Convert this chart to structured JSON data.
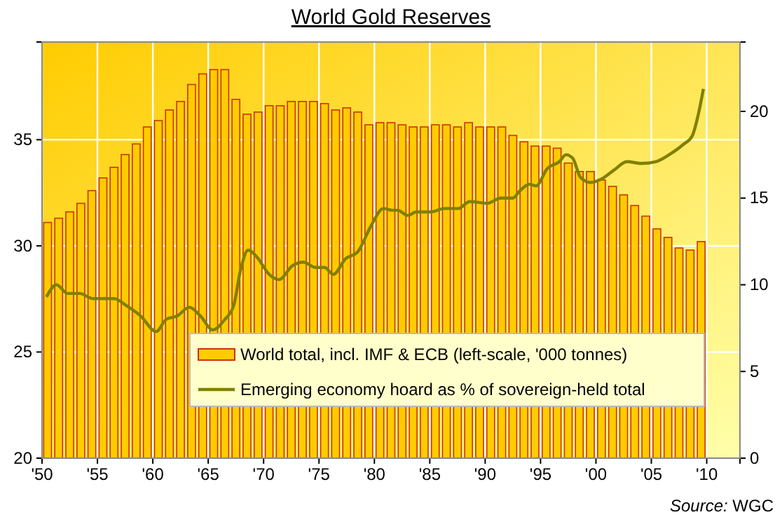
{
  "chart_data": {
    "type": "bar",
    "title": "World Gold Reserves",
    "annotations": [
      "Source: WGC"
    ],
    "x": [
      1950.5,
      1951.5,
      1952.5,
      1953.5,
      1954.5,
      1955.5,
      1956.5,
      1957.5,
      1958.5,
      1959.5,
      1960.5,
      1961.5,
      1962.5,
      1963.5,
      1964.5,
      1965.5,
      1966.5,
      1967.5,
      1968.5,
      1969.5,
      1970.5,
      1971.5,
      1972.5,
      1973.5,
      1974.5,
      1975.5,
      1976.5,
      1977.5,
      1978.5,
      1979.5,
      1980.5,
      1981.5,
      1982.5,
      1983.5,
      1984.5,
      1985.5,
      1986.5,
      1987.5,
      1988.5,
      1989.5,
      1990.5,
      1991.5,
      1992.5,
      1993.5,
      1994.5,
      1995.5,
      1996.5,
      1997.5,
      1998.5,
      1999.5,
      2000.5,
      2001.5,
      2002.5,
      2003.5,
      2004.5,
      2005.5,
      2006.5,
      2007.5,
      2008.5,
      2009.5
    ],
    "series": [
      {
        "name": "World total, incl. IMF & ECB (left-scale, '000 tonnes)",
        "color": "#ffcc00",
        "values": [
          31.1,
          31.3,
          31.6,
          32.0,
          32.6,
          33.2,
          33.7,
          34.3,
          34.8,
          35.6,
          35.9,
          36.4,
          36.8,
          37.6,
          38.1,
          38.3,
          38.3,
          36.9,
          36.2,
          36.3,
          36.6,
          36.6,
          36.8,
          36.8,
          36.8,
          36.7,
          36.4,
          36.5,
          36.3,
          35.7,
          35.8,
          35.8,
          35.7,
          35.6,
          35.6,
          35.7,
          35.7,
          35.6,
          35.8,
          35.6,
          35.6,
          35.6,
          35.2,
          34.9,
          34.7,
          34.7,
          34.6,
          33.9,
          33.5,
          33.5,
          33.1,
          32.8,
          32.4,
          31.9,
          31.4,
          30.8,
          30.4,
          29.9,
          29.8,
          30.2
        ]
      },
      {
        "name": "Emerging economy hoard as % of sovereign-held total",
        "type": "line",
        "axis": "y2",
        "color": "#808000",
        "x": [
          1950.4,
          1951.3,
          1952.3,
          1953.4,
          1954.6,
          1956.5,
          1957.6,
          1958.9,
          1960.3,
          1961.2,
          1962.2,
          1963.3,
          1964.3,
          1965.4,
          1966.5,
          1967.3,
          1967.9,
          1968.6,
          1969.4,
          1970.5,
          1971.4,
          1972.6,
          1973.6,
          1974.7,
          1975.5,
          1976.3,
          1977.4,
          1978.5,
          1979.7,
          1980.8,
          1981.6,
          1982.1,
          1983.0,
          1983.8,
          1985.1,
          1986.3,
          1987.6,
          1988.6,
          1990.2,
          1991.4,
          1992.5,
          1993.1,
          1994.0,
          1994.6,
          1995.6,
          1996.7,
          1997.3,
          1997.9,
          1998.6,
          1999.5,
          2000.5,
          2001.6,
          2002.8,
          2004.1,
          2005.4,
          2006.6,
          2007.9,
          2008.7,
          2009.3,
          2009.7
        ],
        "values": [
          9.3,
          10.0,
          9.5,
          9.5,
          9.2,
          9.2,
          8.8,
          8.2,
          7.3,
          8.0,
          8.2,
          8.7,
          8.2,
          7.4,
          8.0,
          8.8,
          10.8,
          12.0,
          11.6,
          10.6,
          10.3,
          11.1,
          11.3,
          11.0,
          11.0,
          10.6,
          11.5,
          11.9,
          13.4,
          14.4,
          14.3,
          14.3,
          14.0,
          14.2,
          14.2,
          14.4,
          14.4,
          14.8,
          14.7,
          15.0,
          15.0,
          15.4,
          15.8,
          15.7,
          16.7,
          17.1,
          17.5,
          17.3,
          16.2,
          15.9,
          16.1,
          16.6,
          17.1,
          17.0,
          17.1,
          17.5,
          18.1,
          18.6,
          20.0,
          21.3
        ]
      }
    ],
    "xlim": [
      1950,
      2013
    ],
    "xticks": [
      {
        "value": 1950,
        "label": "'50"
      },
      {
        "value": 1955,
        "label": "'55"
      },
      {
        "value": 1960,
        "label": "'60"
      },
      {
        "value": 1965,
        "label": "'65"
      },
      {
        "value": 1970,
        "label": "'70"
      },
      {
        "value": 1975,
        "label": "'75"
      },
      {
        "value": 1980,
        "label": "'80"
      },
      {
        "value": 1985,
        "label": "'85"
      },
      {
        "value": 1990,
        "label": "'90"
      },
      {
        "value": 1995,
        "label": "'95"
      },
      {
        "value": 2000,
        "label": "'00"
      },
      {
        "value": 2005,
        "label": "'05"
      },
      {
        "value": 2010,
        "label": "'10"
      }
    ],
    "ylim": [
      20,
      39.6
    ],
    "yticks": [
      20,
      25,
      30,
      35
    ],
    "y2lim": [
      0,
      24
    ],
    "y2ticks": [
      0,
      5,
      10,
      15,
      20
    ],
    "grid": true,
    "legend": "bottom",
    "marker": "none",
    "line_style": "solid"
  }
}
